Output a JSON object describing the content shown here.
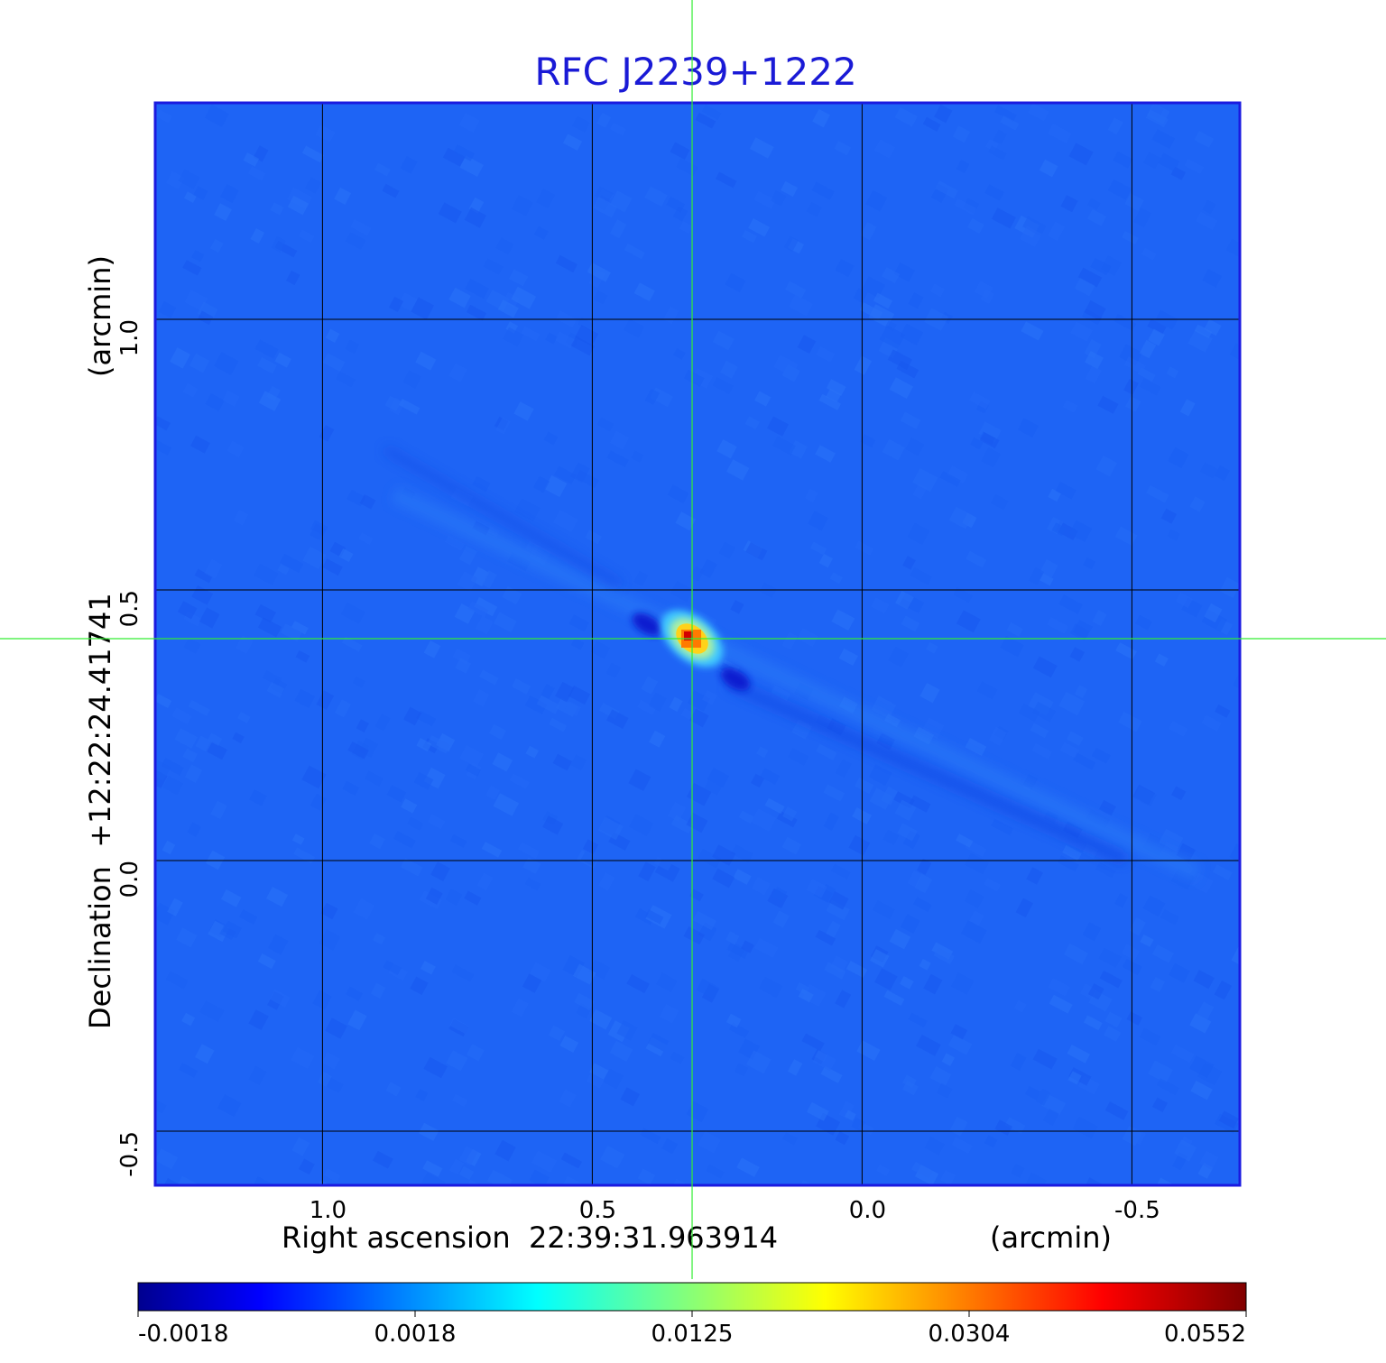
{
  "chart_data": {
    "type": "heatmap",
    "title": "RFC J2239+1222",
    "xlabel": "Right ascension  22:39:31.963914",
    "xunit": "(arcmin)",
    "ylabel": "Declination  +12:22:24.41741",
    "yunit": "(arcmin)",
    "xlim": [
      1.31,
      -0.7
    ],
    "ylim": [
      -0.6,
      1.4
    ],
    "x_ticks": [
      1.0,
      0.5,
      0.0,
      -0.5
    ],
    "x_tick_labels": [
      "1.0",
      "0.5",
      "0.0",
      "-0.5"
    ],
    "y_ticks": [
      1.0,
      0.5,
      0.0,
      -0.5
    ],
    "y_tick_labels": [
      "1.0",
      "0.5",
      "0.0",
      "-0.5"
    ],
    "grid": true,
    "crosshair": {
      "x": 0.315,
      "y": 0.41
    },
    "source": {
      "x": 0.315,
      "y": 0.41,
      "peak": 0.0552
    },
    "colorbar": {
      "ticks": [
        -0.0018,
        0.0018,
        0.0125,
        0.0304,
        0.0552
      ],
      "tick_labels": [
        "-0.0018",
        "0.0018",
        "0.0125",
        "0.0304",
        "0.0552"
      ],
      "colormap": "jet"
    },
    "colors": {
      "title": "#1a1ad6",
      "frame": "#1a1ae0",
      "crosshair": "#33ee33",
      "grid": "#000000",
      "background_map": "#1e64f5"
    }
  }
}
